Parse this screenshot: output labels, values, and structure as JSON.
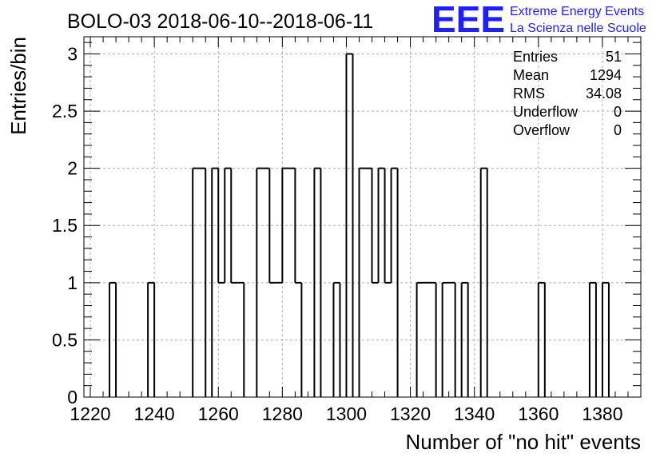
{
  "header": {
    "title": "BOLO-03 2018-06-10--2018-06-11",
    "logo_mark": "EEE",
    "logo_line1": "Extreme Energy Events",
    "logo_line2": "La Scienza nelle Scuole"
  },
  "colors": {
    "logo": "#1f1fff",
    "hist_line": "#000000",
    "grid": "#b0b0b0"
  },
  "stats": [
    {
      "label": "Entries",
      "value": "51"
    },
    {
      "label": "Mean",
      "value": "1294"
    },
    {
      "label": "RMS",
      "value": "34.08"
    },
    {
      "label": "Underflow",
      "value": "0"
    },
    {
      "label": "Overflow",
      "value": "0"
    }
  ],
  "chart_data": {
    "type": "bar",
    "histogram": true,
    "title": "BOLO-03 2018-06-10--2018-06-11",
    "xlabel": "Number of \"no hit\" events",
    "ylabel": "Entries/bin",
    "xlim": [
      1218,
      1392
    ],
    "ylim": [
      0,
      3.15
    ],
    "bin_width": 2,
    "xticks": [
      1220,
      1240,
      1260,
      1280,
      1300,
      1320,
      1340,
      1360,
      1380
    ],
    "yticks": [
      0,
      0.5,
      1,
      1.5,
      2,
      2.5,
      3
    ],
    "ytick_labels": [
      "0",
      "0.5",
      "1",
      "1.5",
      "2",
      "2.5",
      "3"
    ],
    "grid": true,
    "bins": [
      {
        "x0": 1226,
        "count": 1
      },
      {
        "x0": 1238,
        "count": 1
      },
      {
        "x0": 1252,
        "count": 2
      },
      {
        "x0": 1254,
        "count": 2
      },
      {
        "x0": 1256,
        "count": 0
      },
      {
        "x0": 1258,
        "count": 2
      },
      {
        "x0": 1260,
        "count": 1
      },
      {
        "x0": 1262,
        "count": 2
      },
      {
        "x0": 1264,
        "count": 1
      },
      {
        "x0": 1266,
        "count": 1
      },
      {
        "x0": 1272,
        "count": 2
      },
      {
        "x0": 1274,
        "count": 2
      },
      {
        "x0": 1276,
        "count": 1
      },
      {
        "x0": 1278,
        "count": 1
      },
      {
        "x0": 1280,
        "count": 2
      },
      {
        "x0": 1282,
        "count": 2
      },
      {
        "x0": 1284,
        "count": 1
      },
      {
        "x0": 1288,
        "count": 0
      },
      {
        "x0": 1290,
        "count": 2
      },
      {
        "x0": 1296,
        "count": 1
      },
      {
        "x0": 1300,
        "count": 3
      },
      {
        "x0": 1302,
        "count": 0
      },
      {
        "x0": 1304,
        "count": 2
      },
      {
        "x0": 1306,
        "count": 2
      },
      {
        "x0": 1308,
        "count": 1
      },
      {
        "x0": 1310,
        "count": 2
      },
      {
        "x0": 1312,
        "count": 1
      },
      {
        "x0": 1314,
        "count": 2
      },
      {
        "x0": 1322,
        "count": 1
      },
      {
        "x0": 1324,
        "count": 1
      },
      {
        "x0": 1326,
        "count": 1
      },
      {
        "x0": 1330,
        "count": 1
      },
      {
        "x0": 1332,
        "count": 1
      },
      {
        "x0": 1336,
        "count": 1
      },
      {
        "x0": 1342,
        "count": 2
      },
      {
        "x0": 1360,
        "count": 1
      },
      {
        "x0": 1376,
        "count": 1
      },
      {
        "x0": 1380,
        "count": 1
      }
    ]
  }
}
